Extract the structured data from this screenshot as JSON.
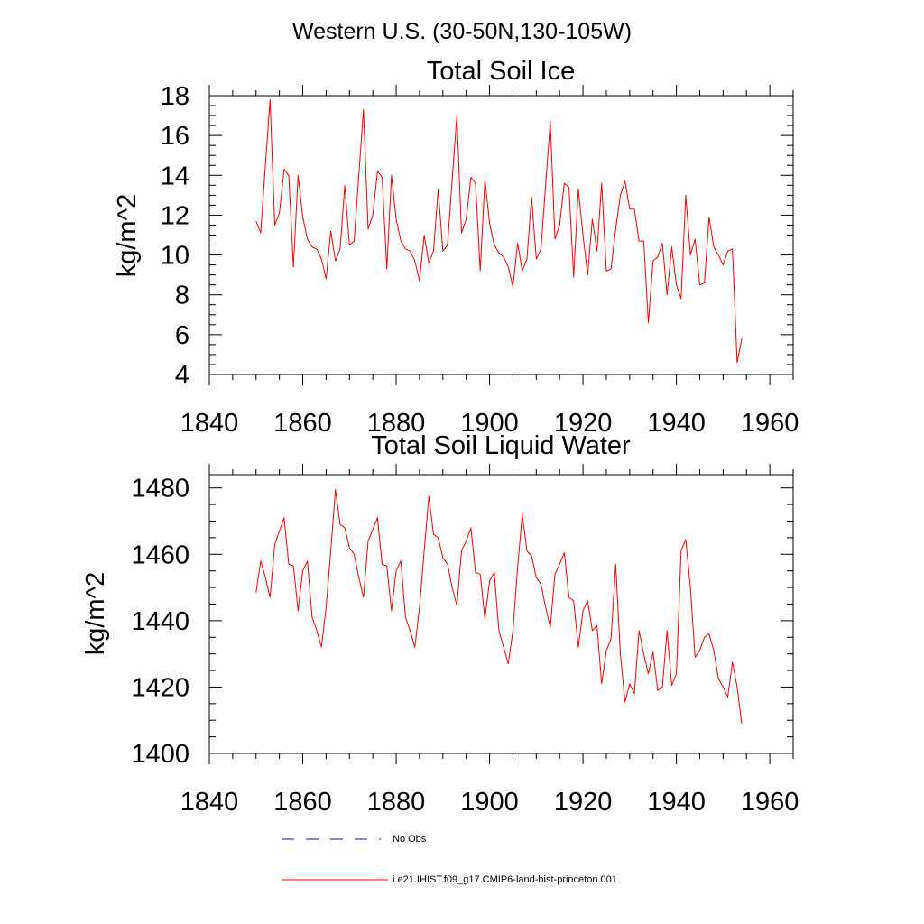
{
  "figure": {
    "title": "Western U.S. (30-50N,130-105W)"
  },
  "colors": {
    "model": "#ff0000",
    "obs": "#1a1a7a"
  },
  "legend": {
    "placement": "bottom-center",
    "entries": [
      {
        "label": "No Obs",
        "style": "dashed",
        "color": "#1a1a7a"
      },
      {
        "label": "i.e21.IHIST.f09_g17.CMIP6-land-hist-princeton.001",
        "style": "solid",
        "color": "#ff0000"
      }
    ]
  },
  "chart_data": [
    {
      "type": "line",
      "title": "Total Soil Ice",
      "xlabel": "",
      "ylabel": "kg/m^2",
      "xlim": [
        1840,
        1965
      ],
      "ylim": [
        4,
        18
      ],
      "xticks": [
        1840,
        1860,
        1880,
        1900,
        1920,
        1940,
        1960
      ],
      "yticks": [
        4,
        6,
        8,
        10,
        12,
        14,
        16,
        18
      ],
      "grid": false,
      "series": [
        {
          "color": "#ff0000",
          "x_start": 1850,
          "x_step": 1,
          "values": [
            11.7,
            11.1,
            14.5,
            17.8,
            11.5,
            12.1,
            14.3,
            14.0,
            9.4,
            14.0,
            11.9,
            10.8,
            10.4,
            10.3,
            9.8,
            8.8,
            11.2,
            9.7,
            10.3,
            13.5,
            10.5,
            10.7,
            14.0,
            17.3,
            11.3,
            12.0,
            14.2,
            13.9,
            9.3,
            14.0,
            11.8,
            10.7,
            10.3,
            10.2,
            9.7,
            8.7,
            11.0,
            9.6,
            10.2,
            13.3,
            10.2,
            10.5,
            13.8,
            17.0,
            11.1,
            11.8,
            13.9,
            13.6,
            9.2,
            13.8,
            11.6,
            10.5,
            10.1,
            9.9,
            9.4,
            8.4,
            10.6,
            9.2,
            9.8,
            12.9,
            9.8,
            10.3,
            13.5,
            16.7,
            10.8,
            11.5,
            13.6,
            13.4,
            8.9,
            13.3,
            11.0,
            9.0,
            11.8,
            10.2,
            13.6,
            9.2,
            9.3,
            11.3,
            13.0,
            13.7,
            12.3,
            12.3,
            10.7,
            10.7,
            6.6,
            9.7,
            9.9,
            10.6,
            8.0,
            10.4,
            8.5,
            7.8,
            13.0,
            10.0,
            10.8,
            8.5,
            8.6,
            11.9,
            10.4,
            10.0,
            9.5,
            10.2,
            10.3,
            4.6,
            5.8
          ]
        }
      ]
    },
    {
      "type": "line",
      "title": "Total Soil Liquid Water",
      "xlabel": "",
      "ylabel": "kg/m^2",
      "xlim": [
        1840,
        1965
      ],
      "ylim": [
        1400,
        1484
      ],
      "xticks": [
        1840,
        1860,
        1880,
        1900,
        1920,
        1940,
        1960
      ],
      "yticks": [
        1400,
        1420,
        1440,
        1460,
        1480
      ],
      "grid": false,
      "series": [
        {
          "color": "#ff0000",
          "x_start": 1850,
          "x_step": 1,
          "values": [
            1448.5,
            1458.0,
            1453.0,
            1447.0,
            1463.0,
            1467.0,
            1471.0,
            1457.0,
            1456.5,
            1443.0,
            1455.0,
            1458.0,
            1441.0,
            1437.0,
            1432.0,
            1444.0,
            1461.0,
            1479.5,
            1469.0,
            1468.0,
            1462.0,
            1460.0,
            1453.0,
            1447.0,
            1464.0,
            1467.5,
            1471.0,
            1457.0,
            1456.5,
            1443.0,
            1455.0,
            1458.0,
            1441.0,
            1437.0,
            1432.0,
            1444.0,
            1461.0,
            1477.5,
            1466.0,
            1465.0,
            1459.0,
            1457.0,
            1450.0,
            1444.5,
            1461.0,
            1464.0,
            1468.0,
            1454.5,
            1454.0,
            1440.5,
            1452.0,
            1454.5,
            1437.0,
            1432.0,
            1427.0,
            1437.0,
            1456.0,
            1472.0,
            1461.0,
            1459.5,
            1453.0,
            1451.0,
            1444.0,
            1438.0,
            1454.0,
            1457.0,
            1460.5,
            1447.0,
            1446.0,
            1432.0,
            1443.0,
            1446.0,
            1437.0,
            1438.5,
            1421.0,
            1431.0,
            1434.5,
            1457.0,
            1430.0,
            1415.5,
            1421.0,
            1418.0,
            1437.0,
            1430.0,
            1424.0,
            1430.5,
            1419.0,
            1420.0,
            1437.0,
            1420.5,
            1424.0,
            1461.0,
            1464.5,
            1450.0,
            1429.0,
            1431.0,
            1435.0,
            1436.0,
            1431.0,
            1422.5,
            1420.0,
            1417.0,
            1427.5,
            1420.0,
            1409.0
          ]
        }
      ]
    }
  ]
}
